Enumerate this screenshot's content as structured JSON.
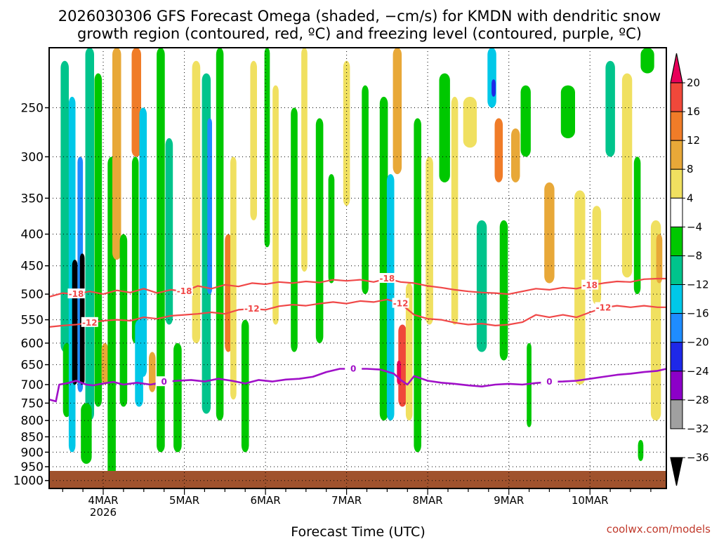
{
  "chart_data": {
    "type": "time-height cross-section",
    "title_line1": "2026030306 GFS Forecast Omega (shaded, −cm/s) for KMDN with dendritic snow",
    "title_line2": "growth region (contoured, red, ºC) and freezing level (contoured, purple, ºC)",
    "xlabel": "Forecast Time (UTC)",
    "credit": "coolwx.com/models",
    "x_range_hours": [
      -16.0,
      166.6
    ],
    "y_range_hpa": [
      200,
      1030
    ],
    "y_ticks": [
      "250",
      "300",
      "350",
      "400",
      "450",
      "500",
      "550",
      "600",
      "650",
      "700",
      "750",
      "800",
      "850",
      "900",
      "950",
      "1000"
    ],
    "x_ticks": [
      {
        "label": "4MAR",
        "sub": "2026",
        "hour": 0
      },
      {
        "label": "5MAR",
        "sub": "",
        "hour": 24
      },
      {
        "label": "6MAR",
        "sub": "",
        "hour": 48
      },
      {
        "label": "7MAR",
        "sub": "",
        "hour": 72
      },
      {
        "label": "8MAR",
        "sub": "",
        "hour": 96
      },
      {
        "label": "9MAR",
        "sub": "",
        "hour": 120
      },
      {
        "label": "10MAR",
        "sub": "",
        "hour": 144
      }
    ],
    "colorbar": {
      "labels": [
        "20",
        "16",
        "12",
        "8",
        "4",
        "−4",
        "−8",
        "−12",
        "−16",
        "−20",
        "−24",
        "−28",
        "−32",
        "−36"
      ],
      "colors": [
        "#e8005a",
        "#f0483a",
        "#f07c28",
        "#e8a838",
        "#f0e060",
        "#ffffff",
        "#00c800",
        "#00c48c",
        "#00c8e8",
        "#1e8cff",
        "#1e28e8",
        "#8c00c8",
        "#a0a0a0",
        "#000000"
      ]
    },
    "contours": [
      {
        "label": "-18",
        "color": "#f04848",
        "width": 2.2,
        "points": [
          [
            -16,
            505
          ],
          [
            -12,
            498
          ],
          [
            -8,
            500
          ],
          [
            -4,
            495
          ],
          [
            0,
            500
          ],
          [
            4,
            493
          ],
          [
            8,
            497
          ],
          [
            12,
            490
          ],
          [
            16,
            498
          ],
          [
            20,
            492
          ],
          [
            24,
            495
          ],
          [
            28,
            485
          ],
          [
            32,
            490
          ],
          [
            36,
            483
          ],
          [
            40,
            486
          ],
          [
            44,
            480
          ],
          [
            48,
            482
          ],
          [
            52,
            478
          ],
          [
            56,
            480
          ],
          [
            60,
            477
          ],
          [
            64,
            479
          ],
          [
            68,
            474
          ],
          [
            72,
            476
          ],
          [
            76,
            474
          ],
          [
            80,
            478
          ],
          [
            84,
            472
          ],
          [
            88,
            478
          ],
          [
            92,
            480
          ],
          [
            96,
            485
          ],
          [
            100,
            488
          ],
          [
            104,
            492
          ],
          [
            108,
            495
          ],
          [
            112,
            497
          ],
          [
            116,
            498
          ],
          [
            120,
            500
          ],
          [
            124,
            495
          ],
          [
            128,
            490
          ],
          [
            132,
            492
          ],
          [
            136,
            488
          ],
          [
            140,
            490
          ],
          [
            144,
            484
          ],
          [
            148,
            480
          ],
          [
            152,
            477
          ],
          [
            156,
            478
          ],
          [
            160,
            473
          ],
          [
            164,
            472
          ],
          [
            166.6,
            472
          ]
        ],
        "label_hours": [
          -6,
          26,
          85,
          146
        ]
      },
      {
        "label": "-12",
        "color": "#f04848",
        "width": 2.2,
        "points": [
          [
            -16,
            565
          ],
          [
            -12,
            562
          ],
          [
            -8,
            560
          ],
          [
            -4,
            556
          ],
          [
            0,
            552
          ],
          [
            4,
            550
          ],
          [
            8,
            552
          ],
          [
            12,
            545
          ],
          [
            16,
            548
          ],
          [
            20,
            542
          ],
          [
            24,
            540
          ],
          [
            28,
            538
          ],
          [
            32,
            535
          ],
          [
            36,
            538
          ],
          [
            40,
            530
          ],
          [
            44,
            528
          ],
          [
            48,
            530
          ],
          [
            52,
            523
          ],
          [
            56,
            520
          ],
          [
            60,
            522
          ],
          [
            64,
            518
          ],
          [
            68,
            515
          ],
          [
            72,
            518
          ],
          [
            76,
            513
          ],
          [
            80,
            515
          ],
          [
            84,
            510
          ],
          [
            88,
            518
          ],
          [
            92,
            540
          ],
          [
            96,
            548
          ],
          [
            100,
            550
          ],
          [
            104,
            556
          ],
          [
            108,
            560
          ],
          [
            112,
            558
          ],
          [
            116,
            562
          ],
          [
            120,
            560
          ],
          [
            124,
            555
          ],
          [
            128,
            540
          ],
          [
            132,
            545
          ],
          [
            136,
            540
          ],
          [
            140,
            545
          ],
          [
            144,
            535
          ],
          [
            148,
            526
          ],
          [
            152,
            522
          ],
          [
            156,
            525
          ],
          [
            160,
            522
          ],
          [
            164,
            525
          ],
          [
            166.6,
            525
          ]
        ],
        "label_hours": [
          -2,
          44,
          90,
          148
        ]
      },
      {
        "label": "0",
        "color": "#a010c8",
        "width": 2.6,
        "points": [
          [
            -16,
            740
          ],
          [
            -14,
            745
          ],
          [
            -13,
            700
          ],
          [
            -10,
            695
          ],
          [
            -8,
            690
          ],
          [
            -5,
            700
          ],
          [
            -3,
            702
          ],
          [
            0,
            697
          ],
          [
            3,
            693
          ],
          [
            6,
            700
          ],
          [
            10,
            695
          ],
          [
            14,
            700
          ],
          [
            18,
            693
          ],
          [
            22,
            690
          ],
          [
            26,
            688
          ],
          [
            30,
            692
          ],
          [
            34,
            685
          ],
          [
            38,
            690
          ],
          [
            42,
            697
          ],
          [
            46,
            688
          ],
          [
            50,
            692
          ],
          [
            54,
            687
          ],
          [
            58,
            685
          ],
          [
            62,
            680
          ],
          [
            66,
            668
          ],
          [
            70,
            660
          ],
          [
            74,
            660
          ],
          [
            78,
            660
          ],
          [
            82,
            662
          ],
          [
            86,
            672
          ],
          [
            88,
            688
          ],
          [
            90,
            700
          ],
          [
            92,
            678
          ],
          [
            96,
            690
          ],
          [
            100,
            695
          ],
          [
            104,
            698
          ],
          [
            108,
            702
          ],
          [
            112,
            705
          ],
          [
            116,
            700
          ],
          [
            120,
            698
          ],
          [
            124,
            700
          ],
          [
            128,
            696
          ],
          [
            132,
            693
          ],
          [
            136,
            692
          ],
          [
            140,
            690
          ],
          [
            144,
            685
          ],
          [
            148,
            680
          ],
          [
            152,
            675
          ],
          [
            156,
            672
          ],
          [
            160,
            668
          ],
          [
            164,
            665
          ],
          [
            166.6,
            660
          ]
        ],
        "label_hours": [
          20,
          76,
          132
        ]
      }
    ],
    "shading": {
      "units": "-cm/s",
      "cells": [
        {
          "h": -11.4,
          "p0": 210,
          "p1": 620,
          "v": -12,
          "w": 2.4
        },
        {
          "h": -10.8,
          "p0": 600,
          "p1": 790,
          "v": -8,
          "w": 2.2
        },
        {
          "h": -9.2,
          "p0": 240,
          "p1": 900,
          "v": -16,
          "w": 2.0
        },
        {
          "h": -8.4,
          "p0": 440,
          "p1": 700,
          "v": -36,
          "w": 1.6
        },
        {
          "h": -6.8,
          "p0": 300,
          "p1": 720,
          "v": -20,
          "w": 1.6
        },
        {
          "h": -6.2,
          "p0": 430,
          "p1": 700,
          "v": -36,
          "w": 1.4
        },
        {
          "h": -4.0,
          "p0": 200,
          "p1": 800,
          "v": -12,
          "w": 2.6
        },
        {
          "h": -5.0,
          "p0": 750,
          "p1": 940,
          "v": -8,
          "w": 3.2
        },
        {
          "h": -1.5,
          "p0": 220,
          "p1": 760,
          "v": -8,
          "w": 2.2
        },
        {
          "h": 0.5,
          "p0": 600,
          "p1": 700,
          "v": 8,
          "w": 2.0
        },
        {
          "h": 2.5,
          "p0": 300,
          "p1": 1000,
          "v": -8,
          "w": 2.4
        },
        {
          "h": 4.0,
          "p0": 200,
          "p1": 440,
          "v": 8,
          "w": 2.6
        },
        {
          "h": 6.0,
          "p0": 400,
          "p1": 760,
          "v": -8,
          "w": 2.2
        },
        {
          "h": 9.8,
          "p0": 200,
          "p1": 300,
          "v": 12,
          "w": 2.8
        },
        {
          "h": 9.5,
          "p0": 300,
          "p1": 600,
          "v": -8,
          "w": 2.0
        },
        {
          "h": 10.6,
          "p0": 550,
          "p1": 760,
          "v": -16,
          "w": 2.4
        },
        {
          "h": 11.8,
          "p0": 250,
          "p1": 680,
          "v": -16,
          "w": 2.2
        },
        {
          "h": 14.5,
          "p0": 620,
          "p1": 720,
          "v": 8,
          "w": 2.0
        },
        {
          "h": 17.0,
          "p0": 200,
          "p1": 900,
          "v": -8,
          "w": 2.4
        },
        {
          "h": 19.5,
          "p0": 280,
          "p1": 560,
          "v": -12,
          "w": 2.2
        },
        {
          "h": 22.0,
          "p0": 600,
          "p1": 900,
          "v": -8,
          "w": 2.4
        },
        {
          "h": 27.5,
          "p0": 210,
          "p1": 600,
          "v": 4,
          "w": 2.4
        },
        {
          "h": 30.5,
          "p0": 220,
          "p1": 780,
          "v": -12,
          "w": 2.6
        },
        {
          "h": 31.5,
          "p0": 260,
          "p1": 500,
          "v": -20,
          "w": 1.4
        },
        {
          "h": 34.5,
          "p0": 200,
          "p1": 800,
          "v": -8,
          "w": 2.2
        },
        {
          "h": 37.0,
          "p0": 400,
          "p1": 620,
          "v": 12,
          "w": 2.0
        },
        {
          "h": 38.5,
          "p0": 300,
          "p1": 740,
          "v": 4,
          "w": 1.8
        },
        {
          "h": 42.0,
          "p0": 550,
          "p1": 900,
          "v": -8,
          "w": 2.2
        },
        {
          "h": 44.5,
          "p0": 210,
          "p1": 380,
          "v": 4,
          "w": 2.0
        },
        {
          "h": 48.5,
          "p0": 200,
          "p1": 420,
          "v": -8,
          "w": 1.6
        },
        {
          "h": 51.0,
          "p0": 230,
          "p1": 560,
          "v": 4,
          "w": 1.8
        },
        {
          "h": 56.5,
          "p0": 250,
          "p1": 620,
          "v": -8,
          "w": 2.0
        },
        {
          "h": 59.5,
          "p0": 200,
          "p1": 460,
          "v": 4,
          "w": 1.8
        },
        {
          "h": 64.0,
          "p0": 260,
          "p1": 600,
          "v": -8,
          "w": 2.2
        },
        {
          "h": 67.5,
          "p0": 320,
          "p1": 480,
          "v": -8,
          "w": 1.8
        },
        {
          "h": 72.0,
          "p0": 210,
          "p1": 360,
          "v": 4,
          "w": 2.0
        },
        {
          "h": 77.5,
          "p0": 230,
          "p1": 500,
          "v": -8,
          "w": 2.0
        },
        {
          "h": 83.0,
          "p0": 240,
          "p1": 800,
          "v": -8,
          "w": 2.4
        },
        {
          "h": 85.0,
          "p0": 320,
          "p1": 800,
          "v": -16,
          "w": 2.2
        },
        {
          "h": 87.0,
          "p0": 200,
          "p1": 320,
          "v": 8,
          "w": 2.6
        },
        {
          "h": 88.5,
          "p0": 560,
          "p1": 760,
          "v": 16,
          "w": 2.4
        },
        {
          "h": 87.5,
          "p0": 640,
          "p1": 700,
          "v": 20,
          "w": 1.2
        },
        {
          "h": 90.5,
          "p0": 480,
          "p1": 800,
          "v": 4,
          "w": 2.0
        },
        {
          "h": 93.0,
          "p0": 260,
          "p1": 900,
          "v": -8,
          "w": 2.2
        },
        {
          "h": 96.5,
          "p0": 300,
          "p1": 560,
          "v": 4,
          "w": 2.2
        },
        {
          "h": 101.0,
          "p0": 220,
          "p1": 330,
          "v": -8,
          "w": 3.2
        },
        {
          "h": 104.0,
          "p0": 240,
          "p1": 560,
          "v": 4,
          "w": 2.0
        },
        {
          "h": 108.5,
          "p0": 240,
          "p1": 290,
          "v": 4,
          "w": 4.0
        },
        {
          "h": 112.0,
          "p0": 380,
          "p1": 620,
          "v": -12,
          "w": 3.0
        },
        {
          "h": 115.0,
          "p0": 200,
          "p1": 250,
          "v": -16,
          "w": 2.6
        },
        {
          "h": 115.5,
          "p0": 225,
          "p1": 240,
          "v": -24,
          "w": 1.2
        },
        {
          "h": 117.0,
          "p0": 260,
          "p1": 330,
          "v": 12,
          "w": 2.4
        },
        {
          "h": 118.5,
          "p0": 380,
          "p1": 640,
          "v": -8,
          "w": 2.4
        },
        {
          "h": 122.0,
          "p0": 270,
          "p1": 330,
          "v": 8,
          "w": 2.6
        },
        {
          "h": 125.0,
          "p0": 230,
          "p1": 300,
          "v": -8,
          "w": 3.0
        },
        {
          "h": 126.0,
          "p0": 600,
          "p1": 820,
          "v": -8,
          "w": 1.4
        },
        {
          "h": 132.0,
          "p0": 330,
          "p1": 480,
          "v": 8,
          "w": 3.0
        },
        {
          "h": 137.5,
          "p0": 230,
          "p1": 280,
          "v": -8,
          "w": 4.2
        },
        {
          "h": 141.0,
          "p0": 340,
          "p1": 700,
          "v": 4,
          "w": 3.2
        },
        {
          "h": 146.0,
          "p0": 360,
          "p1": 520,
          "v": 4,
          "w": 2.6
        },
        {
          "h": 150.0,
          "p0": 210,
          "p1": 300,
          "v": -12,
          "w": 2.8
        },
        {
          "h": 155.0,
          "p0": 220,
          "p1": 470,
          "v": 4,
          "w": 3.0
        },
        {
          "h": 158.0,
          "p0": 300,
          "p1": 500,
          "v": -8,
          "w": 2.0
        },
        {
          "h": 161.0,
          "p0": 200,
          "p1": 220,
          "v": -8,
          "w": 4.0
        },
        {
          "h": 163.5,
          "p0": 380,
          "p1": 800,
          "v": 4,
          "w": 3.0
        },
        {
          "h": 164.5,
          "p0": 400,
          "p1": 480,
          "v": 8,
          "w": 1.8
        },
        {
          "h": 159.0,
          "p0": 860,
          "p1": 930,
          "v": -8,
          "w": 1.6
        }
      ]
    }
  }
}
